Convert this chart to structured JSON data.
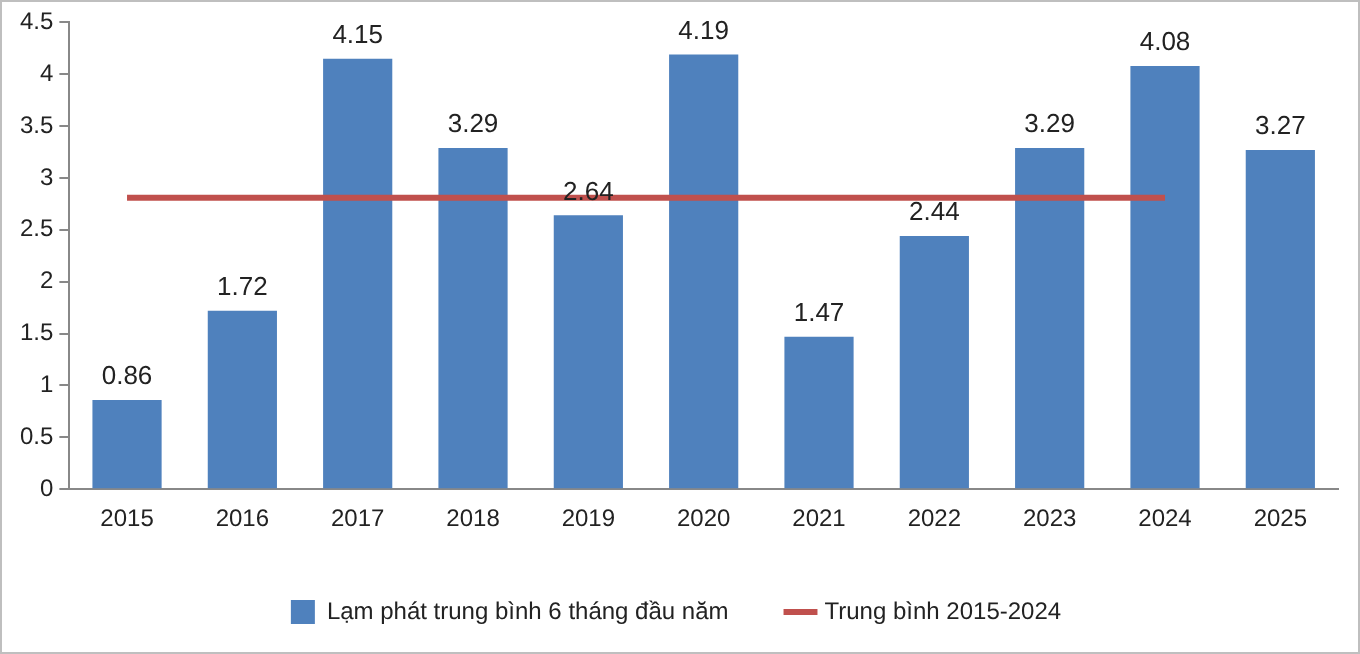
{
  "chart_data": {
    "type": "bar",
    "categories": [
      "2015",
      "2016",
      "2017",
      "2018",
      "2019",
      "2020",
      "2021",
      "2022",
      "2023",
      "2024",
      "2025"
    ],
    "series": [
      {
        "name": "Lạm phát trung bình 6 tháng đầu năm",
        "color": "#4f81bd",
        "values": [
          0.86,
          1.72,
          4.15,
          3.29,
          2.64,
          4.19,
          1.47,
          2.44,
          3.29,
          4.08,
          3.27
        ],
        "value_labels": [
          "0.86",
          "1.72",
          "4.15",
          "3.29",
          "2.64",
          "4.19",
          "1.47",
          "2.44",
          "3.29",
          "4.08",
          "3.27"
        ]
      },
      {
        "name": "Trung bình 2015-2024",
        "type": "line",
        "color": "#c0504d",
        "values": [
          2.81,
          2.81,
          2.81,
          2.81,
          2.81,
          2.81,
          2.81,
          2.81,
          2.81,
          2.81,
          null
        ]
      }
    ],
    "ylim": [
      0,
      4.5
    ],
    "yticks": [
      0,
      0.5,
      1,
      1.5,
      2,
      2.5,
      3,
      3.5,
      4,
      4.5
    ],
    "grid": false,
    "legend": "bottom"
  }
}
